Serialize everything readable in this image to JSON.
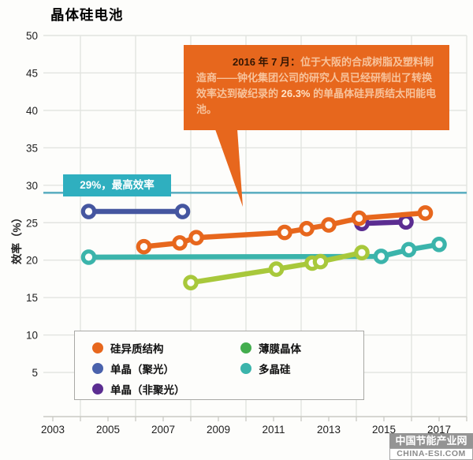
{
  "chart_data": {
    "type": "line",
    "title": "晶体硅电池",
    "ylabel": "效率（%）",
    "xlabel": "",
    "xlim": [
      2002.6,
      2018
    ],
    "ylim": [
      0,
      50
    ],
    "x_ticks": [
      2003,
      2005,
      2007,
      2009,
      2011,
      2013,
      2015,
      2017
    ],
    "y_ticks": [
      5,
      10,
      15,
      20,
      25,
      30,
      35,
      40,
      45,
      50
    ],
    "grid": true,
    "grid_color": "#e2e4e0",
    "axis_color": "#c9c9c4",
    "legend_position": "bottom-left box",
    "series": [
      {
        "name": "多晶硅",
        "color": "#3bb4ab",
        "points": [
          [
            2004.3,
            20.4
          ],
          [
            2014.9,
            20.5
          ],
          [
            2015.9,
            21.4
          ],
          [
            2017.0,
            22.1
          ]
        ]
      },
      {
        "name": "薄膜晶体",
        "color": "#a8c83b",
        "points": [
          [
            2008.0,
            17.0
          ],
          [
            2011.1,
            18.8
          ],
          [
            2012.4,
            19.6
          ],
          [
            2012.7,
            19.8
          ],
          [
            2014.2,
            21.0
          ]
        ]
      },
      {
        "name": "单晶（聚光）",
        "color": "#4556a0",
        "points": [
          [
            2004.3,
            26.5
          ],
          [
            2007.7,
            26.5
          ]
        ]
      },
      {
        "name": "单晶（非聚光）",
        "color": "#5b2d91",
        "points": [
          [
            2014.2,
            24.9
          ],
          [
            2015.8,
            25.1
          ]
        ]
      },
      {
        "name": "硅异质结构",
        "color": "#e7671d",
        "points": [
          [
            2006.3,
            21.8
          ],
          [
            2007.6,
            22.3
          ],
          [
            2008.2,
            23.0
          ],
          [
            2011.4,
            23.7
          ],
          [
            2012.2,
            24.2
          ],
          [
            2013.0,
            24.7
          ],
          [
            2014.1,
            25.6
          ],
          [
            2016.5,
            26.3
          ]
        ]
      }
    ],
    "reference_line": {
      "value": 29,
      "label": "29%，最高效率",
      "line_color": "#5fb0c2",
      "label_bg": "#2fafbf",
      "label_text_color": "#ffffff"
    }
  },
  "callout": {
    "bg": "#e7671d",
    "date_bold": "2016 年 7 月：",
    "text_1": "位于大阪的合成树脂及塑料制造商——钟化集团公司的研究人员已经研制出了转换效率达到破纪录的 ",
    "highlight": "26.3%",
    "text_2": " 的单晶体硅异质结太阳能电池。"
  },
  "legend": {
    "items": [
      {
        "label": "硅异质结构",
        "color": "#e7671d"
      },
      {
        "label": "单晶（聚光）",
        "color": "#4a62ac"
      },
      {
        "label": "单晶（非聚光）",
        "color": "#5b2d91"
      },
      {
        "label": "薄膜晶体",
        "color": "#43ad4e"
      },
      {
        "label": "多晶硅",
        "color": "#3bb4ab"
      }
    ]
  },
  "watermark": {
    "line1": "中国节能产业网",
    "line2": "CHINA-ESI.COM"
  }
}
